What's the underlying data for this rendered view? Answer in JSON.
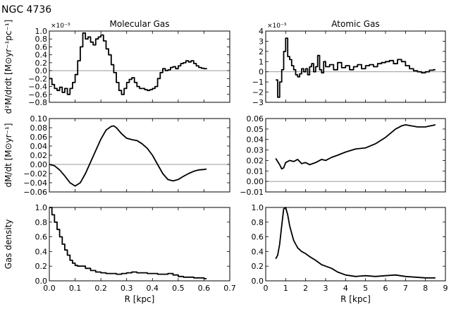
{
  "figure_title": "NGC 4736",
  "chart_data": [
    {
      "id": "molecular_rate",
      "type": "line",
      "step": true,
      "title": "Molecular Gas",
      "ylabel": "d²M/drdt [M⊙yr⁻¹pc⁻¹]",
      "xlabel": "",
      "multiplier": "×10⁻³",
      "xlim": [
        0.0,
        0.7
      ],
      "ylim": [
        -0.8,
        1.0
      ],
      "xticks": [
        0.0,
        0.1,
        0.2,
        0.3,
        0.4,
        0.5,
        0.6,
        0.7
      ],
      "xtick_labels": [],
      "yticks": [
        -0.8,
        -0.6,
        -0.4,
        -0.2,
        0.0,
        0.2,
        0.4,
        0.6,
        0.8,
        1.0
      ],
      "ytick_labels": [
        "−0.8",
        "−0.6",
        "−0.4",
        "−0.2",
        "0.0",
        "0.2",
        "0.4",
        "0.6",
        "0.8",
        "1.0"
      ],
      "reference_line": 0.0,
      "x": [
        0.0,
        0.01,
        0.02,
        0.03,
        0.04,
        0.05,
        0.06,
        0.07,
        0.08,
        0.09,
        0.1,
        0.11,
        0.12,
        0.13,
        0.14,
        0.15,
        0.16,
        0.17,
        0.18,
        0.19,
        0.2,
        0.21,
        0.22,
        0.23,
        0.24,
        0.25,
        0.26,
        0.27,
        0.28,
        0.29,
        0.3,
        0.31,
        0.32,
        0.33,
        0.34,
        0.35,
        0.36,
        0.37,
        0.38,
        0.39,
        0.4,
        0.41,
        0.42,
        0.43,
        0.44,
        0.45,
        0.46,
        0.47,
        0.48,
        0.49,
        0.5,
        0.51,
        0.52,
        0.53,
        0.54,
        0.55,
        0.56,
        0.57,
        0.58,
        0.59,
        0.6,
        0.61
      ],
      "y": [
        -0.2,
        -0.35,
        -0.45,
        -0.5,
        -0.42,
        -0.55,
        -0.45,
        -0.6,
        -0.45,
        -0.3,
        -0.1,
        0.25,
        0.6,
        0.95,
        0.8,
        0.85,
        0.72,
        0.65,
        0.8,
        0.85,
        0.9,
        0.75,
        0.55,
        0.4,
        0.15,
        -0.05,
        -0.3,
        -0.5,
        -0.6,
        -0.45,
        -0.3,
        -0.22,
        -0.18,
        -0.3,
        -0.4,
        -0.45,
        -0.45,
        -0.48,
        -0.5,
        -0.48,
        -0.45,
        -0.4,
        -0.2,
        -0.05,
        0.05,
        0.0,
        0.02,
        0.08,
        0.1,
        0.05,
        0.12,
        0.18,
        0.2,
        0.25,
        0.22,
        0.25,
        0.18,
        0.12,
        0.08,
        0.06,
        0.05,
        0.04
      ]
    },
    {
      "id": "atomic_rate",
      "type": "line",
      "step": true,
      "title": "Atomic Gas",
      "ylabel": "",
      "xlabel": "",
      "multiplier": "×10⁻³",
      "xlim": [
        0,
        9
      ],
      "ylim": [
        -3,
        4
      ],
      "xticks": [
        0,
        1,
        2,
        3,
        4,
        5,
        6,
        7,
        8,
        9
      ],
      "xtick_labels": [],
      "yticks": [
        -3,
        -2,
        -1,
        0,
        1,
        2,
        3,
        4
      ],
      "ytick_labels": [
        "−3",
        "−2",
        "−1",
        "0",
        "1",
        "2",
        "3",
        "4"
      ],
      "reference_line": 0,
      "x": [
        0.5,
        0.6,
        0.7,
        0.8,
        0.9,
        1.0,
        1.1,
        1.2,
        1.3,
        1.4,
        1.5,
        1.6,
        1.7,
        1.8,
        1.9,
        2.0,
        2.1,
        2.2,
        2.3,
        2.4,
        2.5,
        2.6,
        2.7,
        2.8,
        2.9,
        3.0,
        3.2,
        3.4,
        3.6,
        3.8,
        4.0,
        4.2,
        4.4,
        4.6,
        4.8,
        5.0,
        5.2,
        5.4,
        5.6,
        5.8,
        6.0,
        6.2,
        6.4,
        6.6,
        6.8,
        7.0,
        7.2,
        7.4,
        7.6,
        7.8,
        8.0,
        8.2,
        8.4,
        8.5
      ],
      "y": [
        -0.8,
        -2.5,
        -1.0,
        0.2,
        2.0,
        3.3,
        1.5,
        1.2,
        0.6,
        0.2,
        -0.3,
        -0.5,
        -0.2,
        0.3,
        0.0,
        0.3,
        -0.3,
        0.5,
        0.8,
        0.0,
        0.5,
        1.6,
        0.2,
        -0.1,
        1.0,
        0.5,
        0.7,
        0.2,
        0.9,
        0.4,
        0.6,
        0.2,
        0.5,
        0.7,
        0.3,
        0.6,
        0.7,
        0.5,
        0.8,
        0.9,
        1.0,
        1.1,
        0.8,
        1.2,
        1.0,
        0.6,
        0.3,
        0.1,
        0.0,
        -0.1,
        0.0,
        0.15,
        0.2,
        0.2
      ]
    },
    {
      "id": "molecular_flow",
      "type": "line",
      "step": false,
      "title": "",
      "ylabel": "dM/dt [M⊙yr⁻¹]",
      "xlabel": "",
      "multiplier": "",
      "xlim": [
        0.0,
        0.7
      ],
      "ylim": [
        -0.06,
        0.1
      ],
      "xticks": [
        0.0,
        0.1,
        0.2,
        0.3,
        0.4,
        0.5,
        0.6,
        0.7
      ],
      "xtick_labels": [],
      "yticks": [
        -0.06,
        -0.04,
        -0.02,
        0.0,
        0.02,
        0.04,
        0.06,
        0.08,
        0.1
      ],
      "ytick_labels": [
        "−0.06",
        "−0.04",
        "−0.02",
        "0.00",
        "0.02",
        "0.04",
        "0.06",
        "0.08",
        "0.10"
      ],
      "reference_line": 0.0,
      "x": [
        0.0,
        0.02,
        0.04,
        0.06,
        0.08,
        0.1,
        0.12,
        0.14,
        0.16,
        0.18,
        0.2,
        0.22,
        0.24,
        0.25,
        0.26,
        0.28,
        0.3,
        0.32,
        0.34,
        0.36,
        0.38,
        0.4,
        0.42,
        0.44,
        0.46,
        0.48,
        0.5,
        0.52,
        0.54,
        0.56,
        0.58,
        0.6,
        0.61
      ],
      "y": [
        0.0,
        -0.003,
        -0.012,
        -0.025,
        -0.04,
        -0.047,
        -0.04,
        -0.02,
        0.005,
        0.03,
        0.055,
        0.075,
        0.083,
        0.084,
        0.08,
        0.067,
        0.057,
        0.054,
        0.052,
        0.045,
        0.035,
        0.02,
        0.0,
        -0.02,
        -0.033,
        -0.036,
        -0.033,
        -0.026,
        -0.02,
        -0.015,
        -0.012,
        -0.011,
        -0.01
      ]
    },
    {
      "id": "atomic_flow",
      "type": "line",
      "step": false,
      "title": "",
      "ylabel": "",
      "xlabel": "",
      "multiplier": "",
      "xlim": [
        0,
        9
      ],
      "ylim": [
        -0.01,
        0.06
      ],
      "xticks": [
        0,
        1,
        2,
        3,
        4,
        5,
        6,
        7,
        8,
        9
      ],
      "xtick_labels": [],
      "yticks": [
        -0.01,
        0.0,
        0.01,
        0.02,
        0.03,
        0.04,
        0.05,
        0.06
      ],
      "ytick_labels": [
        "−0.01",
        "0.00",
        "0.01",
        "0.02",
        "0.03",
        "0.04",
        "0.05",
        "0.06"
      ],
      "reference_line": 0.0,
      "x": [
        0.5,
        0.7,
        0.8,
        0.9,
        1.0,
        1.2,
        1.4,
        1.6,
        1.8,
        2.0,
        2.2,
        2.5,
        2.8,
        3.0,
        3.3,
        3.6,
        4.0,
        4.5,
        5.0,
        5.5,
        6.0,
        6.5,
        6.8,
        7.0,
        7.3,
        7.6,
        8.0,
        8.5
      ],
      "y": [
        0.022,
        0.016,
        0.012,
        0.013,
        0.018,
        0.02,
        0.019,
        0.021,
        0.017,
        0.018,
        0.016,
        0.018,
        0.021,
        0.02,
        0.023,
        0.025,
        0.028,
        0.031,
        0.032,
        0.036,
        0.042,
        0.05,
        0.053,
        0.054,
        0.053,
        0.052,
        0.052,
        0.054
      ]
    },
    {
      "id": "molecular_density",
      "type": "line",
      "step": true,
      "title": "",
      "ylabel": "Gas density",
      "xlabel": "R [kpc]",
      "multiplier": "",
      "xlim": [
        0.0,
        0.7
      ],
      "ylim": [
        0.0,
        1.0
      ],
      "xticks": [
        0.0,
        0.1,
        0.2,
        0.3,
        0.4,
        0.5,
        0.6,
        0.7
      ],
      "xtick_labels": [
        "0.0",
        "0.1",
        "0.2",
        "0.3",
        "0.4",
        "0.5",
        "0.6",
        "0.7"
      ],
      "yticks": [
        0.0,
        0.2,
        0.4,
        0.6,
        0.8,
        1.0
      ],
      "ytick_labels": [
        "0.0",
        "0.2",
        "0.4",
        "0.6",
        "0.8",
        "1.0"
      ],
      "reference_line": null,
      "x": [
        0.0,
        0.01,
        0.02,
        0.03,
        0.04,
        0.05,
        0.06,
        0.07,
        0.08,
        0.09,
        0.1,
        0.11,
        0.12,
        0.14,
        0.16,
        0.18,
        0.2,
        0.22,
        0.24,
        0.26,
        0.28,
        0.3,
        0.32,
        0.34,
        0.36,
        0.38,
        0.4,
        0.42,
        0.44,
        0.46,
        0.48,
        0.5,
        0.52,
        0.54,
        0.56,
        0.58,
        0.6,
        0.61
      ],
      "y": [
        1.0,
        0.9,
        0.8,
        0.7,
        0.6,
        0.5,
        0.42,
        0.35,
        0.28,
        0.24,
        0.21,
        0.2,
        0.2,
        0.17,
        0.14,
        0.12,
        0.11,
        0.1,
        0.1,
        0.09,
        0.1,
        0.11,
        0.12,
        0.11,
        0.11,
        0.1,
        0.1,
        0.09,
        0.09,
        0.1,
        0.08,
        0.06,
        0.05,
        0.05,
        0.04,
        0.04,
        0.03,
        0.03
      ]
    },
    {
      "id": "atomic_density",
      "type": "line",
      "step": false,
      "title": "",
      "ylabel": "",
      "xlabel": "R [kpc]",
      "multiplier": "",
      "xlim": [
        0,
        9
      ],
      "ylim": [
        0.0,
        1.0
      ],
      "xticks": [
        0,
        1,
        2,
        3,
        4,
        5,
        6,
        7,
        8,
        9
      ],
      "xtick_labels": [
        "0",
        "1",
        "2",
        "3",
        "4",
        "5",
        "6",
        "7",
        "8",
        "9"
      ],
      "yticks": [
        0.0,
        0.2,
        0.4,
        0.6,
        0.8,
        1.0
      ],
      "ytick_labels": [
        "0.0",
        "0.2",
        "0.4",
        "0.6",
        "0.8",
        "1.0"
      ],
      "reference_line": null,
      "x": [
        0.5,
        0.6,
        0.7,
        0.8,
        0.9,
        1.0,
        1.1,
        1.2,
        1.3,
        1.4,
        1.5,
        1.6,
        1.8,
        2.0,
        2.2,
        2.5,
        2.8,
        3.0,
        3.3,
        3.6,
        4.0,
        4.5,
        5.0,
        5.5,
        6.0,
        6.5,
        7.0,
        7.5,
        8.0,
        8.5
      ],
      "y": [
        0.3,
        0.35,
        0.5,
        0.75,
        0.98,
        1.0,
        0.9,
        0.75,
        0.65,
        0.55,
        0.5,
        0.45,
        0.4,
        0.37,
        0.33,
        0.28,
        0.22,
        0.2,
        0.17,
        0.12,
        0.08,
        0.06,
        0.07,
        0.06,
        0.07,
        0.08,
        0.06,
        0.05,
        0.04,
        0.04
      ]
    }
  ]
}
